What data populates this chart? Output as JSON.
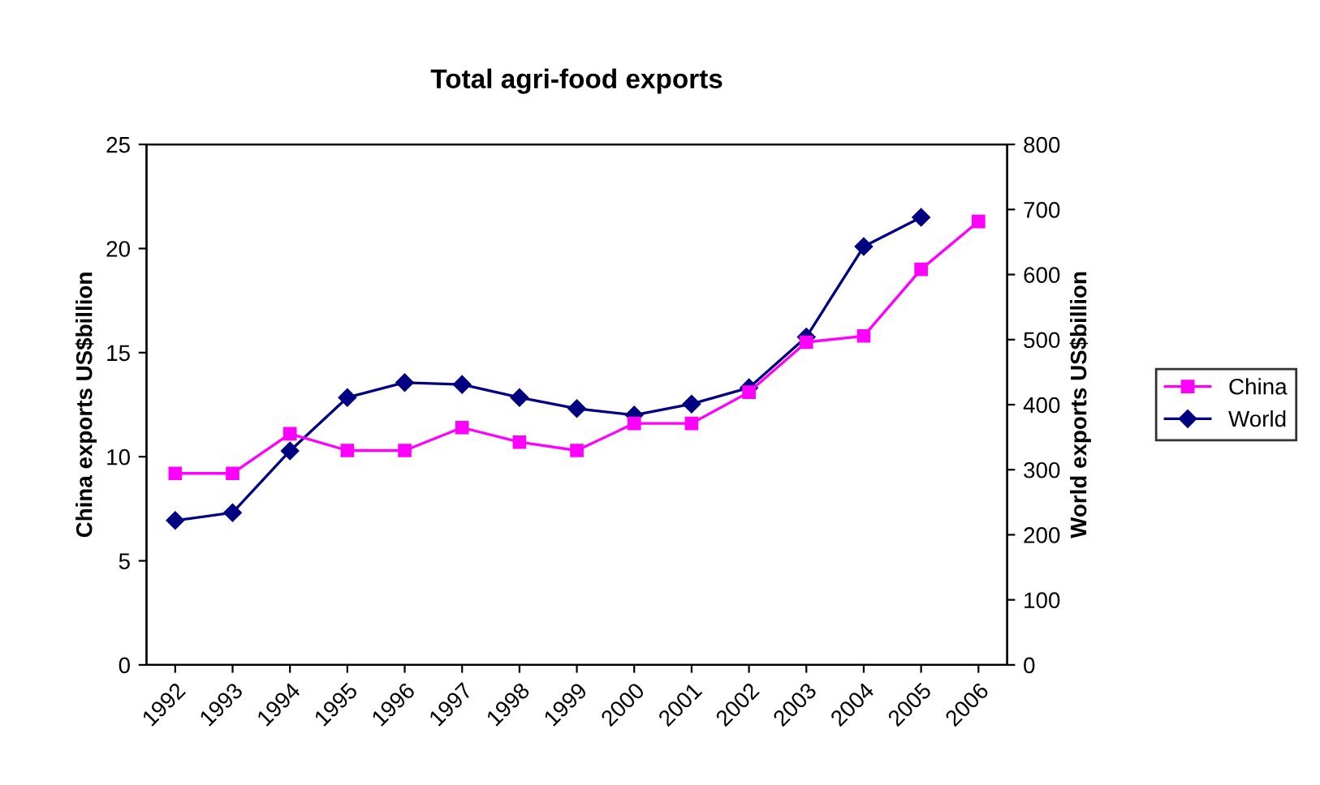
{
  "chart_data": {
    "type": "line",
    "title": "Total agri-food exports",
    "ylabel": "China exports US$billion",
    "y2label": "World exports US$billion",
    "categories": [
      "1992",
      "1993",
      "1994",
      "1995",
      "1996",
      "1997",
      "1998",
      "1999",
      "2000",
      "2001",
      "2002",
      "2003",
      "2004",
      "2005",
      "2006"
    ],
    "series": [
      {
        "name": "China",
        "color": "#ff00ff",
        "marker": "square",
        "values": [
          9.2,
          9.2,
          11.1,
          10.3,
          10.3,
          11.4,
          10.7,
          10.3,
          11.6,
          11.6,
          13.1,
          15.5,
          15.8,
          19.0,
          21.3
        ]
      },
      {
        "name": "World",
        "color": "#000080",
        "marker": "diamond",
        "axis": "y2",
        "values": [
          222,
          234,
          329,
          411,
          434,
          431,
          411,
          394,
          384,
          401,
          426,
          504,
          643,
          688,
          null
        ]
      }
    ],
    "ylim": [
      0,
      25
    ],
    "yticks": [
      0,
      5,
      10,
      15,
      20,
      25
    ],
    "y2lim": [
      0,
      800
    ],
    "y2ticks": [
      0,
      100,
      200,
      300,
      400,
      500,
      600,
      700,
      800
    ],
    "grid": false,
    "legend": "right"
  }
}
